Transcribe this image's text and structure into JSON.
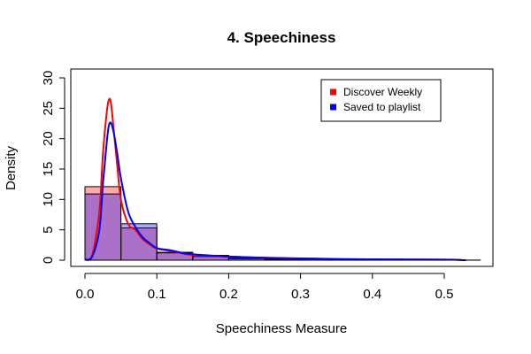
{
  "chart_data": {
    "type": "histogram",
    "title": "4. Speechiness",
    "xlabel": "Speechiness Measure",
    "ylabel": "Density",
    "xlim": [
      0,
      0.55
    ],
    "ylim": [
      0,
      30
    ],
    "x_ticks": [
      0.0,
      0.1,
      0.2,
      0.3,
      0.4,
      0.5
    ],
    "x_tick_labels": [
      "0.0",
      "0.1",
      "0.2",
      "0.3",
      "0.4",
      "0.5"
    ],
    "y_ticks": [
      0,
      5,
      10,
      15,
      20,
      25,
      30
    ],
    "y_tick_labels": [
      "0",
      "5",
      "10",
      "15",
      "20",
      "25",
      "30"
    ],
    "legend": {
      "position": "top-right",
      "entries": [
        {
          "label": "Discover Weekly",
          "color": "#ff0000"
        },
        {
          "label": "Saved to playlist",
          "color": "#0000ff"
        }
      ]
    },
    "histogram_bins": [
      [
        0.0,
        0.05
      ],
      [
        0.05,
        0.1
      ],
      [
        0.1,
        0.15
      ],
      [
        0.15,
        0.2
      ],
      [
        0.2,
        0.25
      ],
      [
        0.25,
        0.3
      ],
      [
        0.3,
        0.35
      ],
      [
        0.35,
        0.4
      ],
      [
        0.4,
        0.45
      ],
      [
        0.45,
        0.5
      ],
      [
        0.5,
        0.55
      ]
    ],
    "series": [
      {
        "name": "Discover Weekly",
        "line_color": "#ff0000",
        "fill_color": "#ff000055",
        "histogram": [
          12.1,
          5.3,
          1.3,
          0.6,
          0.25,
          0.1,
          0.05,
          0.03,
          0.02,
          0.01,
          0.01
        ],
        "density": {
          "x": [
            0.0,
            0.01,
            0.02,
            0.025,
            0.03,
            0.033,
            0.036,
            0.04,
            0.045,
            0.05,
            0.06,
            0.07,
            0.08,
            0.09,
            0.1,
            0.12,
            0.14,
            0.16,
            0.2,
            0.25,
            0.3,
            0.35,
            0.4,
            0.45,
            0.5,
            0.53
          ],
          "y": [
            0.1,
            0.8,
            8.0,
            17.5,
            24.0,
            26.3,
            26.0,
            21.5,
            15.5,
            10.0,
            6.0,
            5.0,
            3.5,
            2.6,
            1.9,
            1.5,
            1.0,
            0.8,
            0.6,
            0.4,
            0.25,
            0.15,
            0.12,
            0.1,
            0.1,
            0.0
          ]
        }
      },
      {
        "name": "Saved to playlist",
        "line_color": "#0000ff",
        "fill_color": "#0000ff55",
        "histogram": [
          10.9,
          6.0,
          1.2,
          0.8,
          0.35,
          0.2,
          0.1,
          0.05,
          0.03,
          0.02,
          0.01
        ],
        "density": {
          "x": [
            0.0,
            0.01,
            0.02,
            0.025,
            0.03,
            0.033,
            0.036,
            0.04,
            0.045,
            0.05,
            0.06,
            0.07,
            0.08,
            0.09,
            0.1,
            0.12,
            0.14,
            0.16,
            0.2,
            0.25,
            0.3,
            0.35,
            0.4,
            0.45,
            0.5,
            0.53
          ],
          "y": [
            0.1,
            0.6,
            5.0,
            12.5,
            19.0,
            22.0,
            22.6,
            21.0,
            17.5,
            13.5,
            8.0,
            5.5,
            3.8,
            2.8,
            2.0,
            1.6,
            1.1,
            0.9,
            0.6,
            0.4,
            0.3,
            0.2,
            0.15,
            0.12,
            0.1,
            0.0
          ]
        }
      }
    ]
  }
}
